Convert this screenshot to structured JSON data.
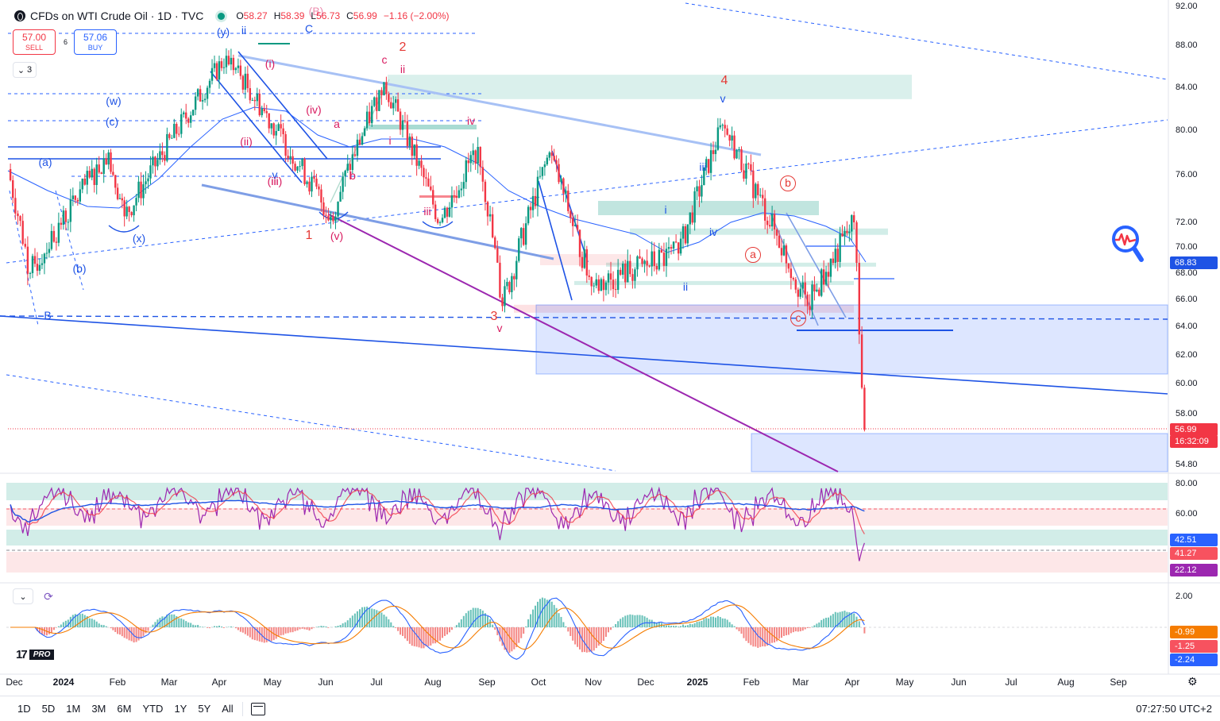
{
  "header": {
    "title": "CFDs on WTI Crude Oil · 1D · TVC",
    "open_label": "O",
    "open": "58.27",
    "high_label": "H",
    "high": "58.39",
    "low_label": "L",
    "low": "56.73",
    "close_label": "C",
    "close": "56.99",
    "change": "−1.16 (−2.00%)"
  },
  "trade": {
    "sell_price": "57.00",
    "sell_label": "SELL",
    "buy_price": "57.06",
    "buy_label": "BUY",
    "spread": "6"
  },
  "indicators_toggle": {
    "count": "3"
  },
  "price_axis": {
    "labels": [
      "92.00",
      "88.00",
      "84.00",
      "80.00",
      "76.00",
      "72.00",
      "70.00",
      "68.00",
      "66.00",
      "64.00",
      "62.00",
      "60.00",
      "58.00",
      "54.80"
    ],
    "rsi_labels": [
      "80.00",
      "60.00"
    ],
    "macd_labels": [
      "2.00"
    ],
    "tags": {
      "ma": "68.83",
      "last_price": "56.99",
      "countdown": "16:32:09",
      "rsi1": "42.51",
      "rsi2": "41.27",
      "rsi3": "22.12",
      "macd1": "-0.99",
      "macd2": "-1.25",
      "macd3": "-2.24"
    },
    "colors": {
      "blue": "#2962ff",
      "red": "#f23645",
      "orange": "#f57c00",
      "purple": "#9c27b0",
      "green": "#089981"
    }
  },
  "time_axis": [
    "Dec",
    "2024",
    "Feb",
    "Mar",
    "Apr",
    "May",
    "Jun",
    "Jul",
    "Aug",
    "Sep",
    "Oct",
    "Nov",
    "Dec",
    "2025",
    "Feb",
    "Mar",
    "Apr",
    "May",
    "Jun",
    "Jul",
    "Aug",
    "Sep"
  ],
  "wave_labels": {
    "blue": [
      "(y)",
      "ii",
      "C",
      "(w)",
      "(c)",
      "(a)",
      "(x)",
      "(b)",
      "B",
      "v",
      "iii",
      "v",
      "i",
      "iv",
      "ii"
    ],
    "red": [
      "(B)",
      "2",
      "c",
      "ii",
      "iv",
      "a",
      "b",
      "iii",
      "1",
      "(v)",
      "(iv)",
      "(ii)",
      "(iii)",
      "(i)",
      "i",
      "iii",
      "3",
      "v",
      "4",
      "b",
      "a",
      "c"
    ]
  },
  "bottom_bar": {
    "ranges": [
      "1D",
      "5D",
      "1M",
      "3M",
      "6M",
      "YTD",
      "1Y",
      "5Y",
      "All"
    ],
    "clock": "07:27:50 UTC+2"
  },
  "logo": {
    "pro": "PRO"
  },
  "chart_data": {
    "type": "candlestick",
    "symbol": "CFDs on WTI Crude Oil",
    "interval": "1D",
    "y_range": [
      53,
      92
    ],
    "x_range": [
      "2023-12",
      "2025-09"
    ],
    "key_price_path": [
      {
        "date": "2023-12-01",
        "price": 76.5
      },
      {
        "date": "2023-12-13",
        "price": 68.0
      },
      {
        "date": "2024-01-26",
        "price": 78.0
      },
      {
        "date": "2024-02-05",
        "price": 72.5
      },
      {
        "date": "2024-04-05",
        "price": 87.0
      },
      {
        "date": "2024-06-04",
        "price": 72.5
      },
      {
        "date": "2024-07-05",
        "price": 84.5
      },
      {
        "date": "2024-08-05",
        "price": 72.0
      },
      {
        "date": "2024-08-26",
        "price": 78.5
      },
      {
        "date": "2024-09-10",
        "price": 65.5
      },
      {
        "date": "2024-10-07",
        "price": 78.0
      },
      {
        "date": "2024-10-30",
        "price": 67.0
      },
      {
        "date": "2024-12-20",
        "price": 69.5
      },
      {
        "date": "2025-01-15",
        "price": 80.5
      },
      {
        "date": "2025-03-05",
        "price": 65.5
      },
      {
        "date": "2025-04-02",
        "price": 72.0
      },
      {
        "date": "2025-04-08",
        "price": 56.99
      }
    ],
    "rsi": {
      "y_range": [
        0,
        100
      ],
      "levels": [
        80,
        60,
        40,
        20
      ],
      "last": [
        42.51,
        41.27,
        22.12
      ]
    },
    "macd": {
      "last": [
        -0.99,
        -1.25,
        -2.24
      ]
    }
  }
}
